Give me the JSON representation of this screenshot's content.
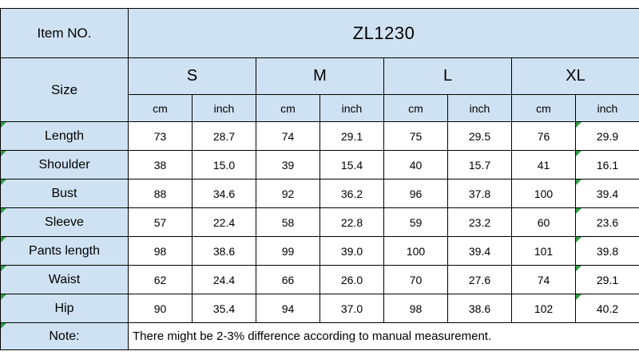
{
  "chart_data": {
    "type": "table",
    "item_no": {
      "label": "Item NO.",
      "value": "ZL1230"
    },
    "size_label": "Size",
    "size_groups": [
      "S",
      "M",
      "L",
      "XL"
    ],
    "unit_headers": [
      "cm",
      "inch"
    ],
    "measurements": [
      {
        "label": "Length",
        "values": [
          "73",
          "28.7",
          "74",
          "29.1",
          "75",
          "29.5",
          "76",
          "29.9"
        ]
      },
      {
        "label": "Shoulder",
        "values": [
          "38",
          "15.0",
          "39",
          "15.4",
          "40",
          "15.7",
          "41",
          "16.1"
        ]
      },
      {
        "label": "Bust",
        "values": [
          "88",
          "34.6",
          "92",
          "36.2",
          "96",
          "37.8",
          "100",
          "39.4"
        ]
      },
      {
        "label": "Sleeve",
        "values": [
          "57",
          "22.4",
          "58",
          "22.8",
          "59",
          "23.2",
          "60",
          "23.6"
        ]
      },
      {
        "label": "Pants length",
        "values": [
          "98",
          "38.6",
          "99",
          "39.0",
          "100",
          "39.4",
          "101",
          "39.8"
        ]
      },
      {
        "label": "Waist",
        "values": [
          "62",
          "24.4",
          "66",
          "26.0",
          "70",
          "27.6",
          "74",
          "29.1"
        ]
      },
      {
        "label": "Hip",
        "values": [
          "90",
          "35.4",
          "94",
          "37.0",
          "98",
          "38.6",
          "102",
          "40.2"
        ]
      }
    ],
    "note": {
      "label": "Note:",
      "text": "There might be 2-3% difference according to manual measurement."
    }
  },
  "icons": {
    "cell_flag": "green-triangle"
  },
  "colors": {
    "header_bg": "#cfe2f3",
    "border": "#000000",
    "flag": "#2f9e44"
  }
}
